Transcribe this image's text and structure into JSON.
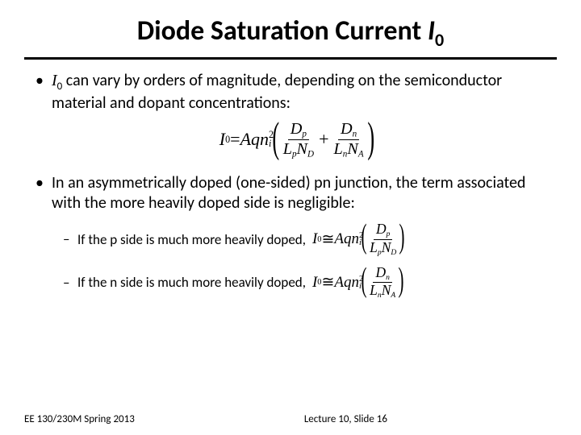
{
  "title_main": "Diode Saturation Current ",
  "title_var": "I",
  "title_sub": "0",
  "b1_pre": "I",
  "b1_sub": "0",
  "b1_text": " can vary by orders of magnitude, depending on the semiconductor material and dopant concentrations:",
  "b2_text": "In an asymmetrically doped (one-sided) pn junction, the term associated with the more heavily doped side is negligible:",
  "s1_text": "If the p side is much more heavily doped,",
  "s2_text": "If the n side is much more heavily doped,",
  "footer_left": "EE 130/230M Spring 2013",
  "footer_center": "Lecture 10, Slide 16",
  "eq": {
    "I": "I",
    "zero": "0",
    "eq": " = ",
    "approx": " ≅ ",
    "A": "A",
    "q": "q",
    "n": "n",
    "i": "i",
    "two": "2",
    "D": "D",
    "L": "L",
    "N": "N",
    "p": "p",
    "nn": "n",
    "DD": "D",
    "AA": "A",
    "plus": " + "
  }
}
